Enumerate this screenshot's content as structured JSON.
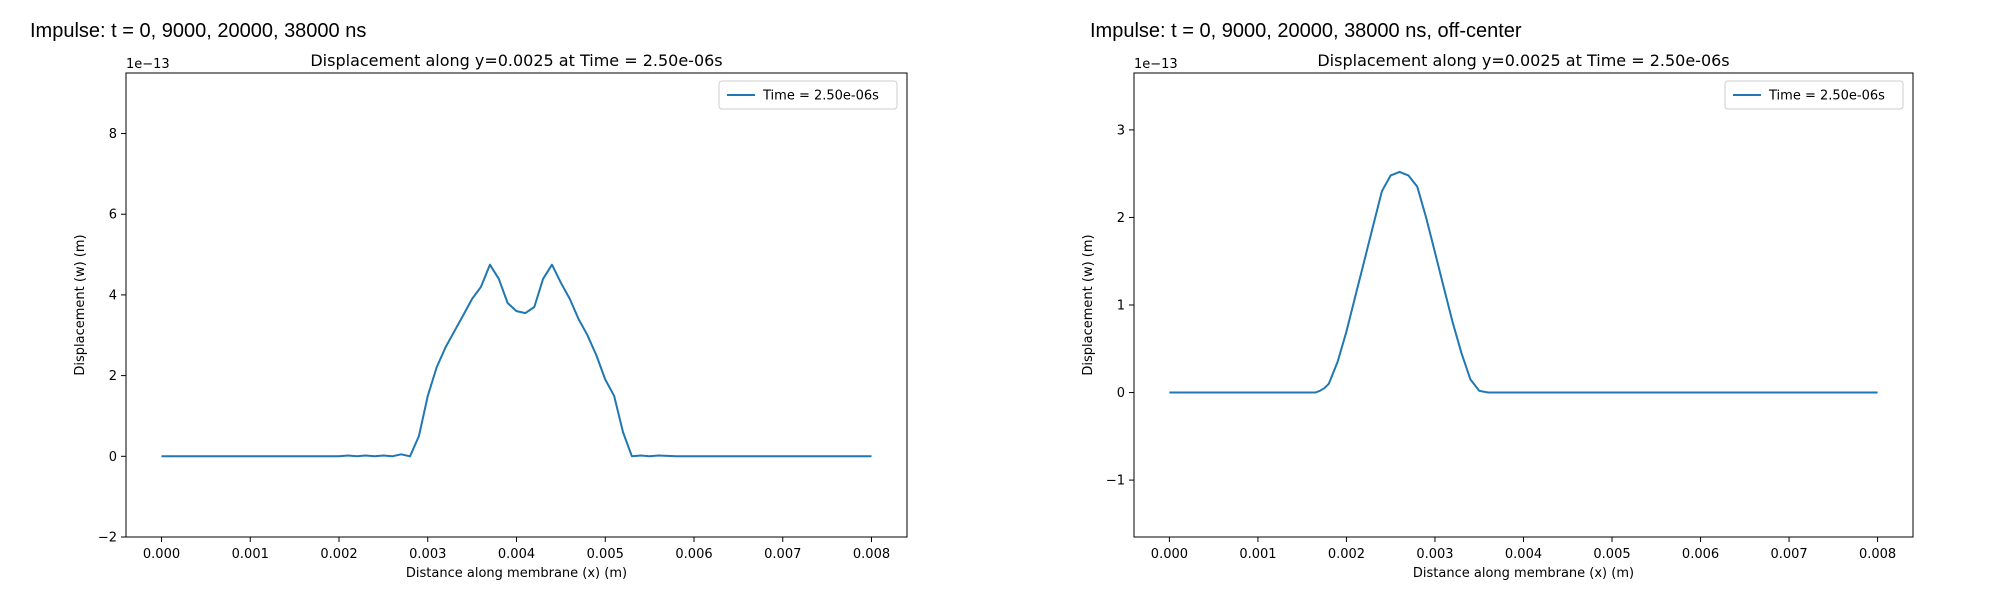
{
  "figure_titles": [
    "Impulse: t = 0, 9000, 20000, 38000 ns",
    "Impulse: t = 0, 9000, 20000, 38000 ns, off-center"
  ],
  "series_color": "#1f77b4",
  "chart_data": [
    {
      "type": "line",
      "title": "Displacement along y=0.0025 at Time = 2.50e-06s",
      "xlabel": "Distance along membrane (x) (m)",
      "ylabel": "Displacement (w) (m)",
      "y_scale_label": "1e−13",
      "xlim": [
        -0.0004,
        0.0084
      ],
      "ylim": [
        -2,
        9.5
      ],
      "xticks": [
        0,
        0.001,
        0.002,
        0.003,
        0.004,
        0.005,
        0.006,
        0.007,
        0.008
      ],
      "xtick_labels": [
        "0.000",
        "0.001",
        "0.002",
        "0.003",
        "0.004",
        "0.005",
        "0.006",
        "0.007",
        "0.008"
      ],
      "yticks": [
        -2,
        0,
        2,
        4,
        6,
        8
      ],
      "ytick_labels": [
        "−2",
        "0",
        "2",
        "4",
        "6",
        "8"
      ],
      "legend_position": "top-right",
      "grid": false,
      "series": [
        {
          "name": "Time = 2.50e-06s",
          "x": [
            0,
            0.002,
            0.0021,
            0.0022,
            0.0023,
            0.0024,
            0.0025,
            0.0026,
            0.0027,
            0.0028,
            0.0029,
            0.003,
            0.0031,
            0.0032,
            0.0033,
            0.0034,
            0.0035,
            0.0036,
            0.0037,
            0.0038,
            0.0039,
            0.004,
            0.0041,
            0.0042,
            0.0043,
            0.0044,
            0.0045,
            0.0046,
            0.0047,
            0.0048,
            0.0049,
            0.005,
            0.0051,
            0.0052,
            0.0053,
            0.0054,
            0.0055,
            0.0056,
            0.0058,
            0.006,
            0.008
          ],
          "y": [
            0,
            0,
            0.02,
            0,
            0.02,
            0,
            0.02,
            0,
            0.05,
            0,
            0.5,
            1.5,
            2.2,
            2.7,
            3.1,
            3.5,
            3.9,
            4.2,
            4.75,
            4.4,
            3.8,
            3.6,
            3.55,
            3.7,
            4.4,
            4.75,
            4.3,
            3.9,
            3.4,
            3.0,
            2.5,
            1.9,
            1.5,
            0.6,
            0,
            0.02,
            0,
            0.02,
            0,
            0,
            0
          ]
        }
      ]
    },
    {
      "type": "line",
      "title": "Displacement along y=0.0025 at Time = 2.50e-06s",
      "xlabel": "Distance along membrane (x) (m)",
      "ylabel": "Displacement (w) (m)",
      "y_scale_label": "1e−13",
      "xlim": [
        -0.0004,
        0.0084
      ],
      "ylim": [
        -1.65,
        3.65
      ],
      "xticks": [
        0,
        0.001,
        0.002,
        0.003,
        0.004,
        0.005,
        0.006,
        0.007,
        0.008
      ],
      "xtick_labels": [
        "0.000",
        "0.001",
        "0.002",
        "0.003",
        "0.004",
        "0.005",
        "0.006",
        "0.007",
        "0.008"
      ],
      "yticks": [
        -1,
        0,
        1,
        2,
        3
      ],
      "ytick_labels": [
        "−1",
        "0",
        "1",
        "2",
        "3"
      ],
      "legend_position": "top-right",
      "grid": false,
      "series": [
        {
          "name": "Time = 2.50e-06s",
          "x": [
            0,
            0.0016,
            0.00165,
            0.0017,
            0.00175,
            0.0018,
            0.0019,
            0.002,
            0.0021,
            0.0022,
            0.0023,
            0.0024,
            0.0025,
            0.0026,
            0.0027,
            0.0028,
            0.0029,
            0.003,
            0.0031,
            0.0032,
            0.0033,
            0.0034,
            0.0035,
            0.0036,
            0.0037,
            0.0038,
            0.008
          ],
          "y": [
            0,
            0,
            0,
            0.02,
            0.05,
            0.1,
            0.35,
            0.7,
            1.1,
            1.5,
            1.9,
            2.3,
            2.48,
            2.52,
            2.48,
            2.35,
            2.0,
            1.6,
            1.2,
            0.8,
            0.45,
            0.15,
            0.02,
            0,
            0,
            0,
            0
          ]
        }
      ]
    }
  ]
}
